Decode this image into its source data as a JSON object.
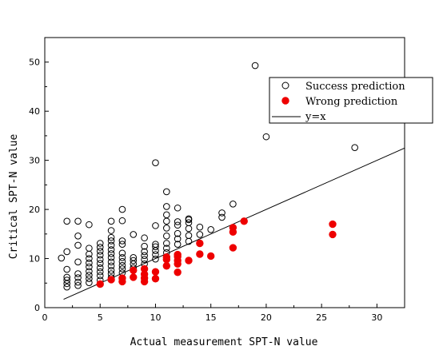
{
  "chart_data": {
    "type": "scatter",
    "xlabel": "Actual measurement SPT-N value",
    "ylabel": "Critical SPT-N value",
    "xlim": [
      0,
      32.5
    ],
    "ylim": [
      0,
      55
    ],
    "xticks": [
      0,
      5,
      10,
      15,
      20,
      25,
      30
    ],
    "yticks": [
      0,
      10,
      20,
      30,
      40,
      50
    ],
    "grid": false,
    "legend_position": "top-right",
    "series": [
      {
        "name": "Success prediction",
        "marker": "open-circle",
        "color": "#000000",
        "points": [
          [
            1.5,
            10.1
          ],
          [
            2,
            4.2
          ],
          [
            2,
            4.9
          ],
          [
            2,
            5.6
          ],
          [
            2,
            6.2
          ],
          [
            2,
            7.8
          ],
          [
            2,
            11.4
          ],
          [
            2,
            17.6
          ],
          [
            3,
            4.5
          ],
          [
            3,
            5.2
          ],
          [
            3,
            6.1
          ],
          [
            3,
            6.9
          ],
          [
            3,
            9.3
          ],
          [
            3,
            12.7
          ],
          [
            3,
            14.6
          ],
          [
            3,
            17.6
          ],
          [
            4,
            5.1
          ],
          [
            4,
            5.9
          ],
          [
            4,
            6.6
          ],
          [
            4,
            7.4
          ],
          [
            4,
            8.3
          ],
          [
            4,
            9.1
          ],
          [
            4,
            10.0
          ],
          [
            4,
            10.9
          ],
          [
            4,
            12.1
          ],
          [
            4,
            16.9
          ],
          [
            5,
            5.6
          ],
          [
            5,
            6.5
          ],
          [
            5,
            7.3
          ],
          [
            5,
            8.1
          ],
          [
            5,
            9.0
          ],
          [
            5,
            9.8
          ],
          [
            5,
            10.7
          ],
          [
            5,
            11.5
          ],
          [
            5,
            12.3
          ],
          [
            5,
            13.1
          ],
          [
            6,
            6.1
          ],
          [
            6,
            6.9
          ],
          [
            6,
            7.6
          ],
          [
            6,
            8.5
          ],
          [
            6,
            9.3
          ],
          [
            6,
            10.2
          ],
          [
            6,
            11.0
          ],
          [
            6,
            11.8
          ],
          [
            6,
            12.7
          ],
          [
            6,
            13.6
          ],
          [
            6,
            14.3
          ],
          [
            6,
            15.7
          ],
          [
            6,
            17.6
          ],
          [
            7,
            7.1
          ],
          [
            7,
            7.9
          ],
          [
            7,
            8.6
          ],
          [
            7,
            9.4
          ],
          [
            7,
            10.2
          ],
          [
            7,
            11.1
          ],
          [
            7,
            12.9
          ],
          [
            7,
            13.6
          ],
          [
            7,
            17.7
          ],
          [
            7,
            20.0
          ],
          [
            8,
            8.1
          ],
          [
            8,
            8.9
          ],
          [
            8,
            9.6
          ],
          [
            8,
            10.2
          ],
          [
            8,
            14.9
          ],
          [
            9,
            8.9
          ],
          [
            9,
            9.8
          ],
          [
            9,
            10.6
          ],
          [
            9,
            11.4
          ],
          [
            9,
            12.5
          ],
          [
            9,
            14.2
          ],
          [
            10,
            9.9
          ],
          [
            10,
            10.8
          ],
          [
            10,
            11.6
          ],
          [
            10,
            12.4
          ],
          [
            10,
            12.9
          ],
          [
            10,
            16.7
          ],
          [
            10,
            29.5
          ],
          [
            11,
            11.2
          ],
          [
            11,
            12.1
          ],
          [
            11,
            13.1
          ],
          [
            11,
            14.6
          ],
          [
            11,
            16.2
          ],
          [
            11,
            17.6
          ],
          [
            11,
            18.9
          ],
          [
            11,
            20.6
          ],
          [
            11,
            23.6
          ],
          [
            12,
            12.9
          ],
          [
            12,
            14.0
          ],
          [
            12,
            15.1
          ],
          [
            12,
            16.8
          ],
          [
            12,
            17.5
          ],
          [
            12,
            20.3
          ],
          [
            13,
            13.5
          ],
          [
            13,
            14.7
          ],
          [
            13,
            16.1
          ],
          [
            13,
            17.3
          ],
          [
            13,
            17.9
          ],
          [
            13,
            18.1
          ],
          [
            14,
            14.9
          ],
          [
            14,
            16.4
          ],
          [
            15,
            15.9
          ],
          [
            16,
            18.4
          ],
          [
            16,
            19.3
          ],
          [
            17,
            21.1
          ],
          [
            19,
            49.3
          ],
          [
            20,
            34.8
          ],
          [
            28,
            32.6
          ]
        ]
      },
      {
        "name": "Wrong prediction",
        "marker": "filled-circle",
        "color": "#ee0000",
        "points": [
          [
            5,
            4.8
          ],
          [
            6,
            5.7
          ],
          [
            7,
            5.3
          ],
          [
            7,
            6.0
          ],
          [
            8,
            6.2
          ],
          [
            8,
            7.6
          ],
          [
            9,
            5.3
          ],
          [
            9,
            6.0
          ],
          [
            9,
            6.8
          ],
          [
            9,
            7.9
          ],
          [
            10,
            5.9
          ],
          [
            10,
            7.3
          ],
          [
            11,
            8.5
          ],
          [
            11,
            9.8
          ],
          [
            11,
            10.3
          ],
          [
            12,
            7.2
          ],
          [
            12,
            8.9
          ],
          [
            12,
            9.6
          ],
          [
            12,
            10.4
          ],
          [
            12,
            10.8
          ],
          [
            13,
            9.6
          ],
          [
            14,
            10.9
          ],
          [
            14,
            13.1
          ],
          [
            15,
            10.5
          ],
          [
            17,
            12.2
          ],
          [
            17,
            15.4
          ],
          [
            17,
            16.3
          ],
          [
            18,
            17.6
          ],
          [
            26,
            14.9
          ],
          [
            26,
            17.0
          ]
        ]
      }
    ],
    "reference_line": {
      "name": "y=x",
      "from": [
        1.7,
        1.7
      ],
      "to": [
        32.5,
        32.5
      ],
      "color": "#000000"
    }
  },
  "colors": {
    "success": "#000000",
    "wrong": "#ee0000",
    "line": "#000000"
  }
}
